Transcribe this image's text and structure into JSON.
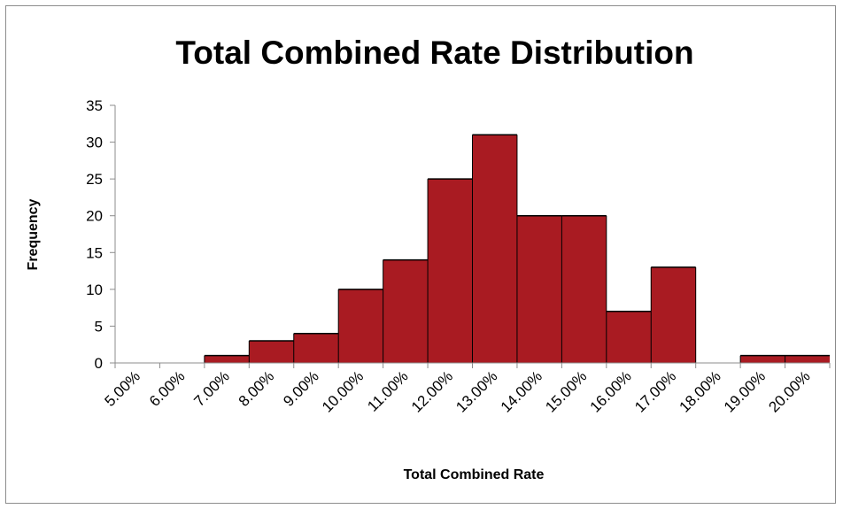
{
  "chart_data": {
    "type": "bar",
    "title": "Total Combined Rate Distribution",
    "xlabel": "Total Combined Rate",
    "ylabel": "Frequency",
    "categories": [
      "5.00%",
      "6.00%",
      "7.00%",
      "8.00%",
      "9.00%",
      "10.00%",
      "11.00%",
      "12.00%",
      "13.00%",
      "14.00%",
      "15.00%",
      "16.00%",
      "17.00%",
      "18.00%",
      "19.00%",
      "20.00%"
    ],
    "values": [
      0,
      0,
      1,
      3,
      4,
      10,
      14,
      25,
      31,
      20,
      20,
      7,
      13,
      0,
      1,
      1
    ],
    "ylim": [
      0,
      35
    ],
    "yticks": [
      0,
      5,
      10,
      15,
      20,
      25,
      30,
      35
    ],
    "grid": false,
    "legend": "none",
    "colors": {
      "bar_fill": "#a91b22",
      "axis": "#8c8c8c"
    }
  }
}
